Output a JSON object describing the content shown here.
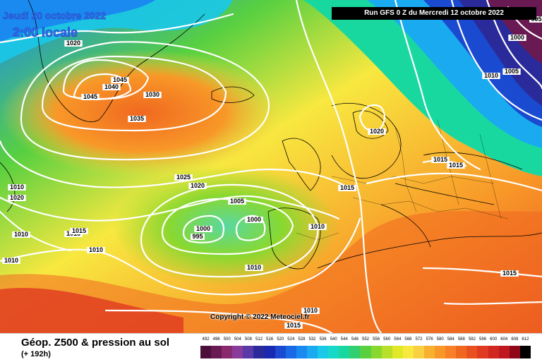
{
  "header": {
    "date_title": "Jeudi 20 octobre 2022",
    "time_title": "2:00 locale",
    "run_banner": "Run GFS 0 Z du Mercredi 12 octobre 2022"
  },
  "map": {
    "isobar_labels": [
      "1020",
      "1045",
      "1040",
      "1045",
      "1030",
      "1035",
      "1020",
      "1025",
      "1020",
      "1015",
      "1010",
      "1010",
      "1010",
      "1010",
      "1015",
      "1010",
      "1005",
      "1000",
      "1000",
      "995",
      "1010",
      "1010",
      "1015",
      "1015",
      "1015",
      "1015",
      "1010",
      "1005",
      "1000",
      "995",
      "1020",
      "1015"
    ],
    "copyright": "Copyright © 2022 Meteociel.fr"
  },
  "legend": {
    "product_title": "Géop. Z500 & pression au sol",
    "forecast_step": "(+ 192h)",
    "scale_values": [
      "492",
      "496",
      "500",
      "504",
      "508",
      "512",
      "516",
      "520",
      "524",
      "528",
      "532",
      "536",
      "540",
      "544",
      "548",
      "552",
      "556",
      "560",
      "564",
      "568",
      "572",
      "576",
      "580",
      "584",
      "588",
      "592",
      "596",
      "600",
      "604",
      "608",
      "612"
    ],
    "scale_colors": [
      "#4b0f3a",
      "#6a1a52",
      "#8a2a6e",
      "#8a3a9a",
      "#5a3aa8",
      "#2a2a9a",
      "#1a2ab0",
      "#1a4ad0",
      "#1a6ae8",
      "#1a8af0",
      "#1aaaf0",
      "#1ac8e8",
      "#18d8c8",
      "#18d8a0",
      "#30d070",
      "#58d040",
      "#88d830",
      "#b8e028",
      "#e0e828",
      "#f8e840",
      "#f8d040",
      "#f8b030",
      "#f89828",
      "#f88028",
      "#f06820",
      "#e85020",
      "#e03a20",
      "#d02820",
      "#c01820",
      "#900818",
      "#000000"
    ]
  }
}
